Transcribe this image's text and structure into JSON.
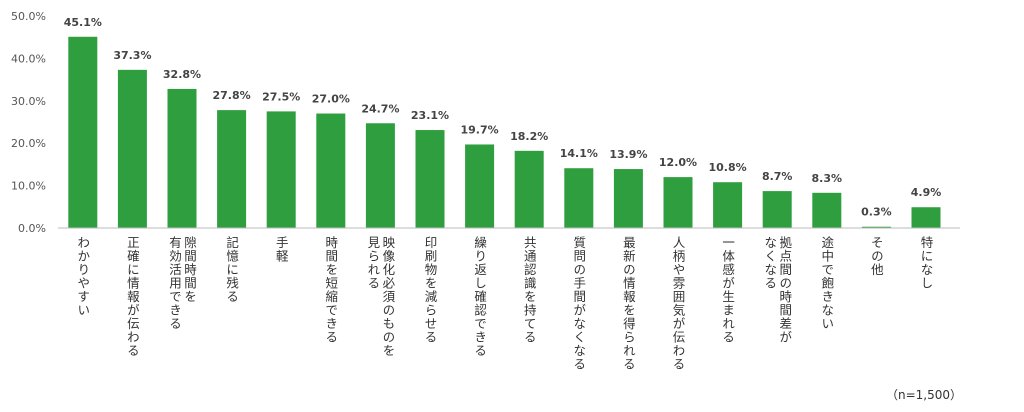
{
  "chart_data": {
    "type": "bar",
    "categories": [
      "わかりやすい",
      "正確に情報が伝わる",
      "隙間時間を\n有効活用できる",
      "記憶に残る",
      "手軽",
      "時間を短縮できる",
      "映像化必須のものを\n見られる",
      "印刷物を減らせる",
      "繰り返し確認できる",
      "共通認識を持てる",
      "質問の手間がなくなる",
      "最新の情報を得られる",
      "人柄や雰囲気が伝わる",
      "一体感が生まれる",
      "拠点間の時間差が\nなくなる",
      "途中で飽きない",
      "その他",
      "特になし"
    ],
    "values": [
      45.1,
      37.3,
      32.8,
      27.8,
      27.5,
      27.0,
      24.7,
      23.1,
      19.7,
      18.2,
      14.1,
      13.9,
      12.0,
      10.8,
      8.7,
      8.3,
      0.3,
      4.9
    ],
    "value_labels": [
      "45.1%",
      "37.3%",
      "32.8%",
      "27.8%",
      "27.5%",
      "27.0%",
      "24.7%",
      "23.1%",
      "19.7%",
      "18.2%",
      "14.1%",
      "13.9%",
      "12.0%",
      "10.8%",
      "8.7%",
      "8.3%",
      "0.3%",
      "4.9%"
    ],
    "yticks": [
      "0.0%",
      "10.0%",
      "20.0%",
      "30.0%",
      "40.0%",
      "50.0%"
    ],
    "ylim": [
      0,
      50
    ],
    "bar_color": "#2e9e3e",
    "grid": false,
    "note": "（n=1,500）"
  }
}
